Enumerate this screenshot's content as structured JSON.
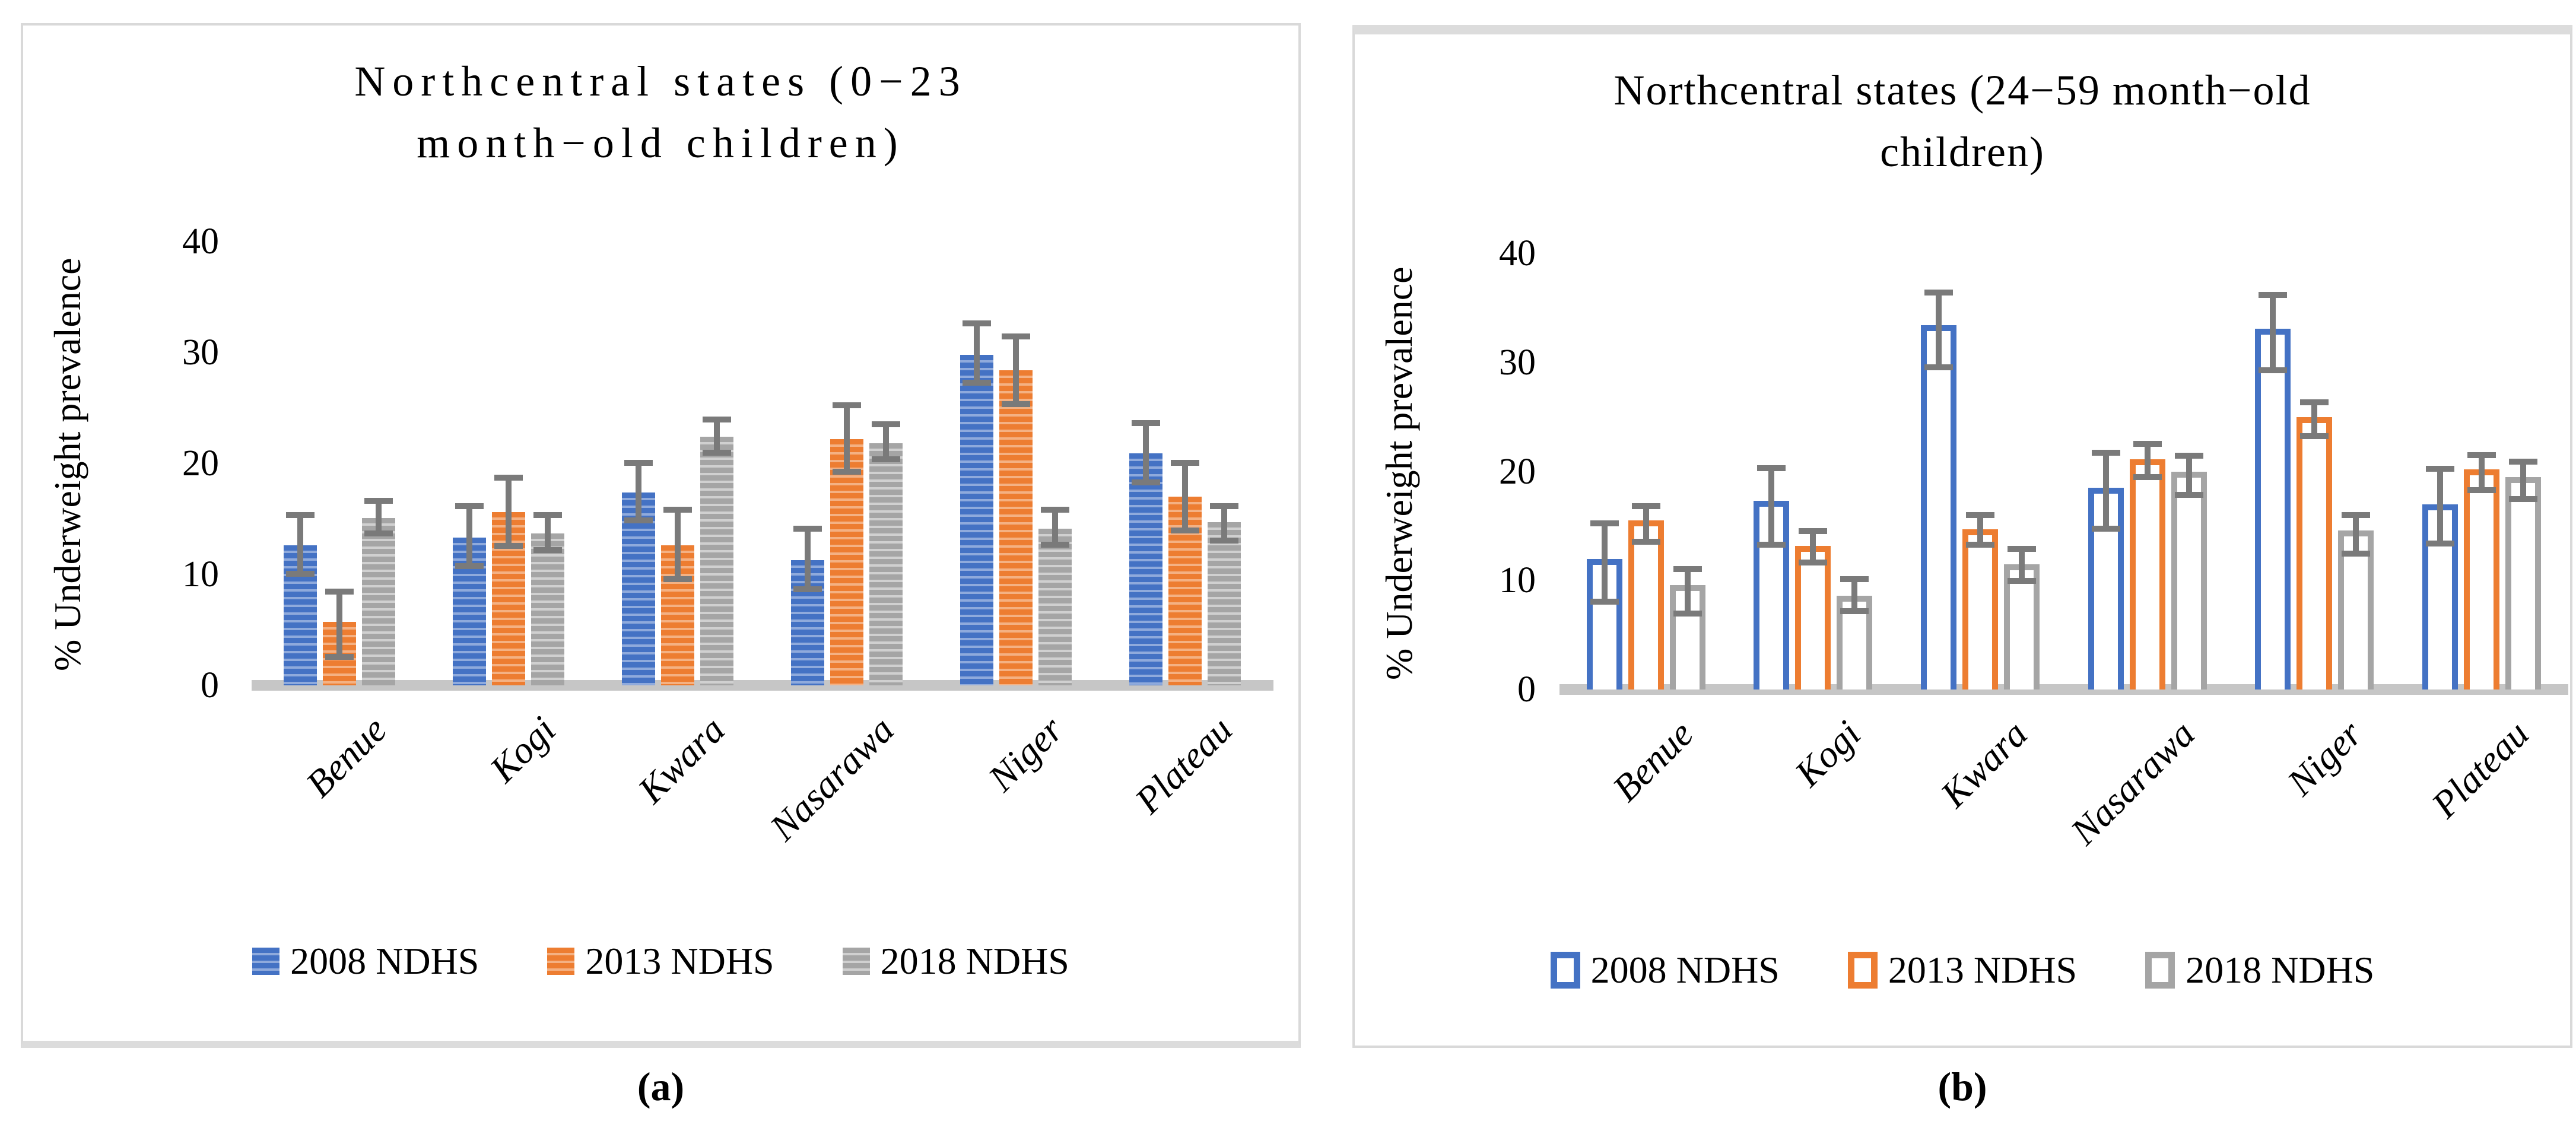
{
  "figure": {
    "caption_a": "(a)",
    "caption_b": "(b)"
  },
  "colors": {
    "series_2008": "#4472C4",
    "series_2008_light": "#8FAADC",
    "series_2013": "#ED7D31",
    "series_2013_light": "#F4B183",
    "series_2018": "#A5A5A5",
    "series_2018_light": "#D0D0D0",
    "error_bar": "#7a7a7a",
    "axis_strip": "#c6c6c6",
    "panel_border": "#d9d9d9"
  },
  "chart_data": [
    {
      "type": "bar",
      "panel": "a",
      "title": "Northcentral states (0−23 month−old children)",
      "title_lines": [
        "Northcentral states (0−23",
        "month−old children)"
      ],
      "ylabel": "% Underweight prevalence",
      "xlabel": "",
      "ylim": [
        0,
        40
      ],
      "yticks": [
        0,
        10,
        20,
        30,
        40
      ],
      "grid": false,
      "legend_position": "bottom",
      "bar_style": "striped",
      "categories": [
        "Benue",
        "Kogi",
        "Kwara",
        "Nasarawa",
        "Niger",
        "Plateau"
      ],
      "series": [
        {
          "name": "2008 NDHS",
          "color": "#4472C4",
          "color_light": "#8FAADC",
          "values": [
            12.6,
            13.3,
            17.4,
            11.3,
            29.8,
            20.9
          ],
          "err_low": [
            9.8,
            10.5,
            14.6,
            8.4,
            27.0,
            18.0
          ],
          "err_high": [
            15.6,
            16.4,
            20.3,
            14.4,
            32.9,
            23.9
          ]
        },
        {
          "name": "2013 NDHS",
          "color": "#ED7D31",
          "color_light": "#F4B183",
          "values": [
            5.7,
            15.6,
            12.6,
            22.2,
            28.4,
            17.0
          ],
          "err_low": [
            2.3,
            12.3,
            9.3,
            19.0,
            25.1,
            13.7
          ],
          "err_high": [
            8.7,
            19.0,
            16.1,
            25.5,
            31.7,
            20.3
          ]
        },
        {
          "name": "2018 NDHS",
          "color": "#A5A5A5",
          "color_light": "#D0D0D0",
          "values": [
            15.1,
            13.7,
            22.4,
            21.8,
            14.1,
            14.7
          ],
          "err_low": [
            13.4,
            11.9,
            20.7,
            20.1,
            12.4,
            12.8
          ],
          "err_high": [
            16.9,
            15.6,
            24.2,
            23.8,
            16.1,
            16.4
          ]
        }
      ]
    },
    {
      "type": "bar",
      "panel": "b",
      "title": "Northcentral states (24−59 month−old children)",
      "title_lines": [
        "Northcentral states (24−59 month−old",
        "children)"
      ],
      "ylabel": "% Underweight prevalence",
      "xlabel": "",
      "ylim": [
        0,
        40
      ],
      "yticks": [
        0,
        10,
        20,
        30,
        40
      ],
      "grid": false,
      "legend_position": "bottom",
      "bar_style": "outlined",
      "categories": [
        "Benue",
        "Kogi",
        "Kwara",
        "Nasarawa",
        "Niger",
        "Plateau"
      ],
      "series": [
        {
          "name": "2008 NDHS",
          "color": "#4472C4",
          "color_light": "#8FAADC",
          "values": [
            12.0,
            17.3,
            33.4,
            18.5,
            33.1,
            17.0
          ],
          "err_low": [
            7.8,
            13.0,
            29.3,
            14.5,
            29.0,
            13.1
          ],
          "err_high": [
            15.5,
            20.6,
            36.7,
            22.0,
            36.5,
            20.5
          ]
        },
        {
          "name": "2013 NDHS",
          "color": "#ED7D31",
          "color_light": "#F4B183",
          "values": [
            15.5,
            13.2,
            14.7,
            21.1,
            25.0,
            20.2
          ],
          "err_low": [
            13.3,
            11.4,
            13.0,
            19.2,
            23.0,
            18.0
          ],
          "err_high": [
            17.1,
            14.8,
            16.3,
            22.8,
            26.6,
            21.8
          ]
        },
        {
          "name": "2018 NDHS",
          "color": "#A5A5A5",
          "color_light": "#D0D0D0",
          "values": [
            9.6,
            8.6,
            11.5,
            20.0,
            14.6,
            19.5
          ],
          "err_low": [
            6.7,
            6.9,
            9.7,
            17.6,
            12.2,
            17.2
          ],
          "err_high": [
            11.3,
            10.4,
            13.2,
            21.7,
            16.3,
            21.2
          ]
        }
      ]
    }
  ]
}
